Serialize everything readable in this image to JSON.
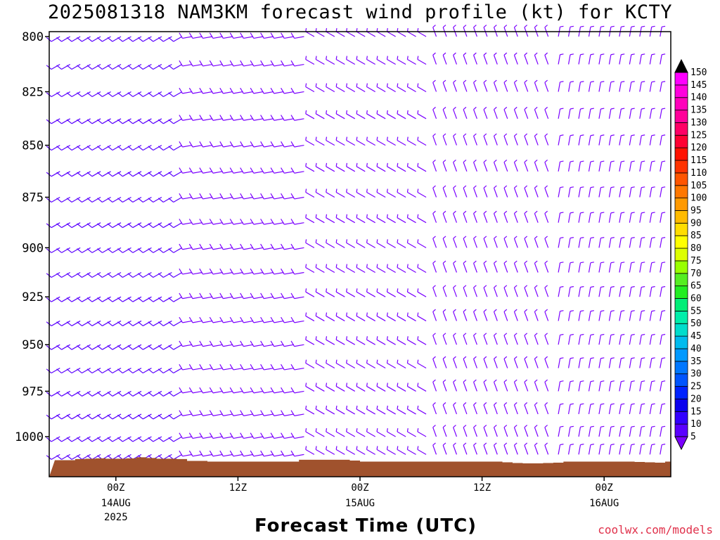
{
  "title": "2025081318 NAM3KM forecast wind profile (kt) for KCTY",
  "credit": "coolwx.com/models",
  "chart_data": {
    "type": "wind-barb-time-height",
    "xlabel": "Forecast Time (UTC)",
    "ylabel": "",
    "y_axis": {
      "scale": "log",
      "range": [
        800,
        1020
      ],
      "ticks": [
        800,
        825,
        850,
        875,
        900,
        925,
        950,
        975,
        1000
      ]
    },
    "x_axis": {
      "range_hours_from_start": [
        0,
        60
      ],
      "ticks": [
        {
          "hour": 6,
          "label": "00Z",
          "sublabel": "14AUG",
          "sublabel2": "2025"
        },
        {
          "hour": 18,
          "label": "12Z",
          "sublabel": "",
          "sublabel2": ""
        },
        {
          "hour": 30,
          "label": "00Z",
          "sublabel": "15AUG",
          "sublabel2": ""
        },
        {
          "hour": 42,
          "label": "12Z",
          "sublabel": "",
          "sublabel2": ""
        },
        {
          "hour": 54,
          "label": "00Z",
          "sublabel": "16AUG",
          "sublabel2": ""
        }
      ]
    },
    "barb_time_step_hours": 1,
    "barb_levels_hpa": [
      800,
      812.5,
      825,
      837.5,
      850,
      862.5,
      875,
      887.5,
      900,
      912.5,
      925,
      937.5,
      950,
      962.5,
      975,
      987.5,
      1000,
      1010
    ],
    "wind_regimes": [
      {
        "hours": [
          0,
          12
        ],
        "direction_deg": 240,
        "speed_kt": 12,
        "note": "southwesterly"
      },
      {
        "hours": [
          12,
          24
        ],
        "direction_deg": 260,
        "speed_kt": 10,
        "note": "westerly"
      },
      {
        "hours": [
          24,
          36
        ],
        "direction_deg": 300,
        "speed_kt": 8,
        "note": "northwesterly"
      },
      {
        "hours": [
          36,
          48
        ],
        "direction_deg": 340,
        "speed_kt": 6,
        "note": "light northerly"
      },
      {
        "hours": [
          48,
          60
        ],
        "direction_deg": 10,
        "speed_kt": 6,
        "note": "light northerly"
      }
    ],
    "terrain": {
      "color": "#a0522d",
      "surface_pressure_hpa": [
        1013.2,
        1013.2,
        1012.6,
        1012.4,
        1012.2,
        1012.4,
        1012.4,
        1012.2,
        1011.6,
        1012.0,
        1012.4,
        1012.4,
        1012.6,
        1013.6,
        1013.6,
        1014.0,
        1014.0,
        1014.0,
        1014.0,
        1014.0,
        1014.0,
        1014.0,
        1014.0,
        1014.0,
        1013.0,
        1013.0,
        1013.0,
        1013.0,
        1013.0,
        1013.4,
        1014.0,
        1014.0,
        1014.0,
        1014.0,
        1014.0,
        1014.0,
        1014.0,
        1014.0,
        1014.0,
        1014.0,
        1014.0,
        1014.0,
        1014.0,
        1014.0,
        1014.4,
        1014.8,
        1015.0,
        1015.0,
        1014.8,
        1014.6,
        1014.0,
        1014.0,
        1014.0,
        1014.0,
        1014.0,
        1014.0,
        1014.0,
        1014.2,
        1014.4,
        1014.6,
        1014.0
      ]
    },
    "colorbar": {
      "units": "kt",
      "levels": [
        5,
        10,
        15,
        20,
        25,
        30,
        35,
        40,
        45,
        50,
        55,
        60,
        65,
        70,
        75,
        80,
        85,
        90,
        95,
        100,
        105,
        110,
        115,
        120,
        125,
        130,
        135,
        140,
        145,
        150
      ],
      "colors": [
        "#7a00ff",
        "#5a00ff",
        "#3300ff",
        "#0a00ee",
        "#0022ff",
        "#0055ff",
        "#0077ff",
        "#0099ff",
        "#00bbee",
        "#00ddcc",
        "#00eeaa",
        "#00ee77",
        "#22ee22",
        "#55ee22",
        "#99ff00",
        "#ddff00",
        "#ffff00",
        "#ffdd00",
        "#ffbb00",
        "#ff9900",
        "#ff7700",
        "#ff5500",
        "#ff3300",
        "#ff1100",
        "#ff0033",
        "#ff0066",
        "#ff0099",
        "#ff00bb",
        "#ff00dd",
        "#ff00ff"
      ]
    }
  }
}
